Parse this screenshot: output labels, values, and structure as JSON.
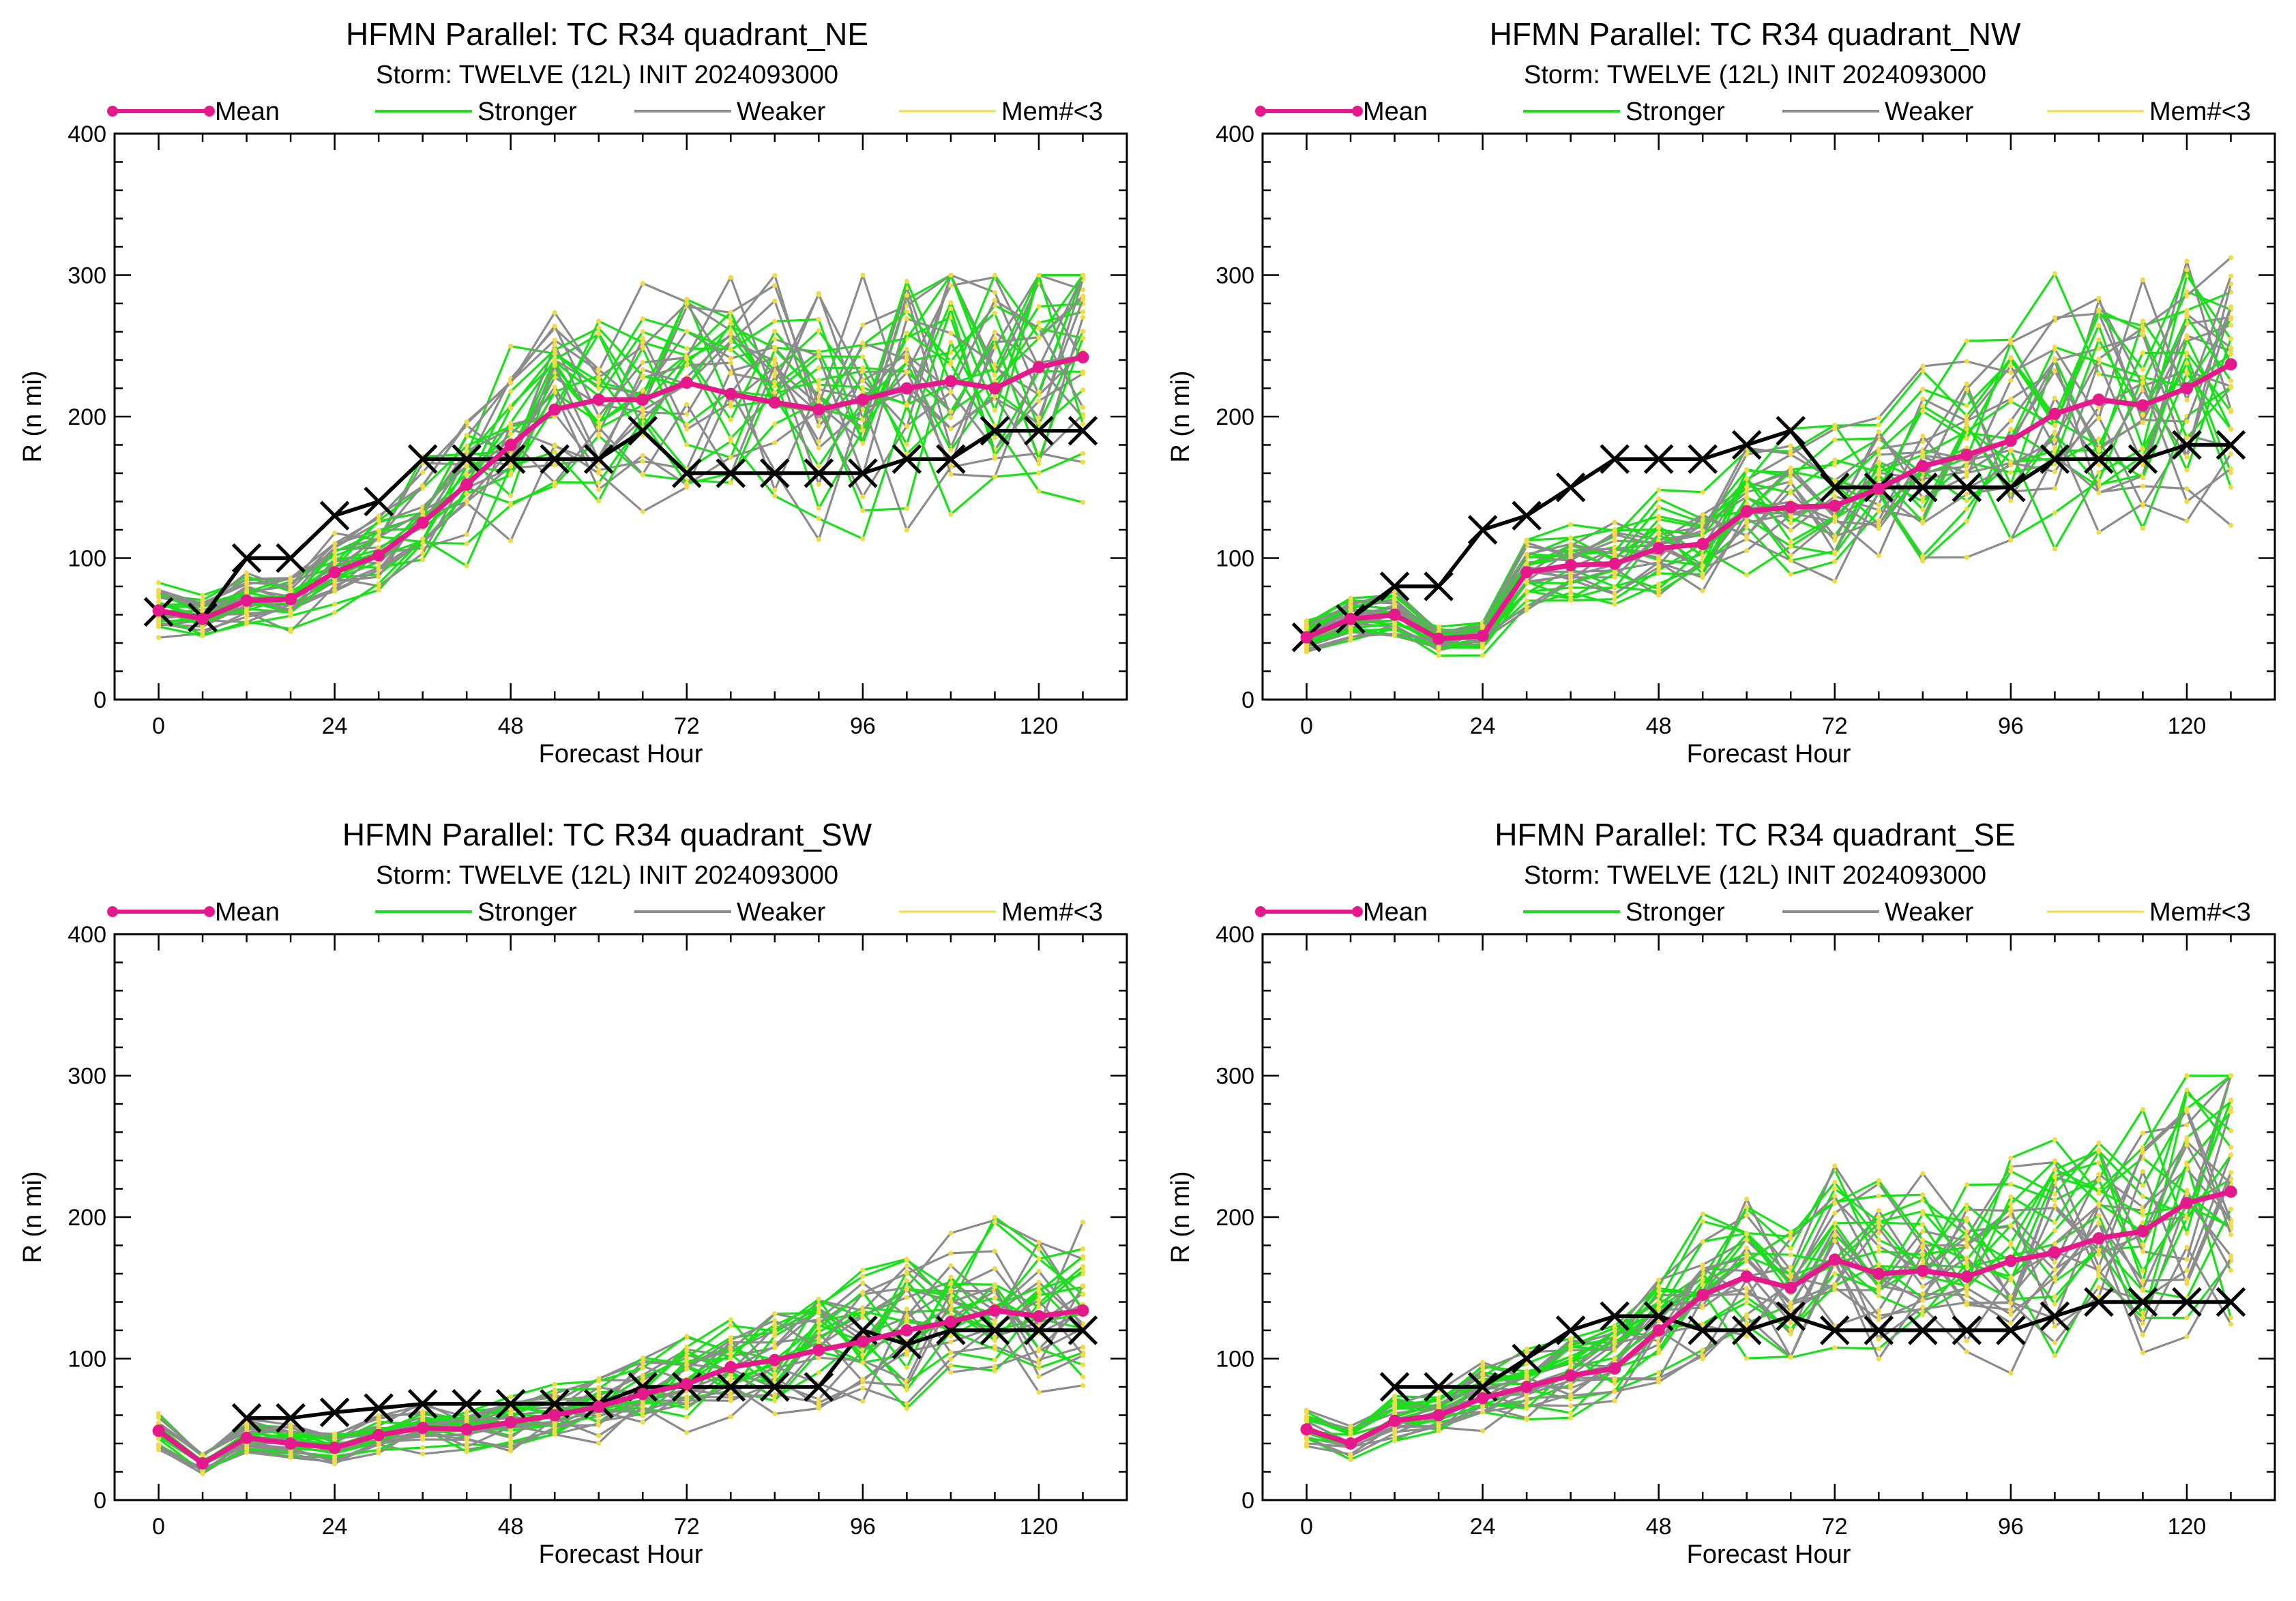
{
  "legend_labels": {
    "mean": "Mean",
    "stronger": "Stronger",
    "weaker": "Weaker",
    "members": "Mem#<3"
  },
  "colors": {
    "mean": "#e6198c",
    "stronger": "#19e019",
    "weaker": "#8c8c8c",
    "members": "#f0dc46",
    "best_track": "#000000"
  },
  "chart_data": [
    {
      "type": "line",
      "title": "HFMN Parallel: TC  R34 quadrant_NE",
      "subtitle": "Storm: TWELVE (12L) INIT 2024093000",
      "xlabel": "Forecast Hour",
      "ylabel": "R (n mi)",
      "xlim": [
        -6,
        132
      ],
      "ylim": [
        0,
        400
      ],
      "xticks": [
        0,
        24,
        48,
        72,
        96,
        120
      ],
      "yticks": [
        0,
        100,
        200,
        300,
        400
      ],
      "grid": false,
      "legend_position": "top",
      "x": [
        0,
        6,
        12,
        18,
        24,
        30,
        36,
        42,
        48,
        54,
        60,
        66,
        72,
        78,
        84,
        90,
        96,
        102,
        108,
        114,
        120,
        126
      ],
      "series": [
        {
          "name": "Mean",
          "values": [
            63,
            57,
            70,
            71,
            90,
            102,
            125,
            152,
            180,
            205,
            212,
            212,
            224,
            216,
            210,
            205,
            212,
            220,
            225,
            220,
            235,
            242
          ]
        },
        {
          "name": "",
          "values": [
            62,
            58,
            100,
            100,
            130,
            140,
            170,
            170,
            170,
            170,
            170,
            190,
            160,
            160,
            160,
            160,
            160,
            170,
            170,
            190,
            190,
            190
          ]
        }
      ],
      "ensemble_members": {
        "count": 30,
        "value_range": [
          30,
          300
        ]
      }
    },
    {
      "type": "line",
      "title": "HFMN Parallel: TC  R34 quadrant_NW",
      "subtitle": "Storm: TWELVE (12L) INIT 2024093000",
      "xlabel": "Forecast Hour",
      "ylabel": "R (n mi)",
      "xlim": [
        -6,
        132
      ],
      "ylim": [
        0,
        400
      ],
      "xticks": [
        0,
        24,
        48,
        72,
        96,
        120
      ],
      "yticks": [
        0,
        100,
        200,
        300,
        400
      ],
      "grid": false,
      "legend_position": "top",
      "x": [
        0,
        6,
        12,
        18,
        24,
        30,
        36,
        42,
        48,
        54,
        60,
        66,
        72,
        78,
        84,
        90,
        96,
        102,
        108,
        114,
        120,
        126
      ],
      "series": [
        {
          "name": "Mean",
          "values": [
            44,
            57,
            60,
            43,
            45,
            90,
            95,
            96,
            107,
            110,
            133,
            136,
            137,
            149,
            165,
            173,
            183,
            202,
            212,
            208,
            220,
            237
          ]
        },
        {
          "name": "",
          "values": [
            44,
            57,
            80,
            80,
            120,
            130,
            150,
            170,
            170,
            170,
            180,
            190,
            150,
            150,
            150,
            150,
            150,
            170,
            170,
            170,
            180,
            180
          ]
        }
      ],
      "ensemble_members": {
        "count": 30,
        "value_range": [
          10,
          320
        ]
      }
    },
    {
      "type": "line",
      "title": "HFMN Parallel: TC  R34 quadrant_SW",
      "subtitle": "Storm: TWELVE (12L) INIT 2024093000",
      "xlabel": "Forecast Hour",
      "ylabel": "R (n mi)",
      "xlim": [
        -6,
        132
      ],
      "ylim": [
        0,
        400
      ],
      "xticks": [
        0,
        24,
        48,
        72,
        96,
        120
      ],
      "yticks": [
        0,
        100,
        200,
        300,
        400
      ],
      "grid": false,
      "legend_position": "top",
      "x": [
        0,
        6,
        12,
        18,
        24,
        30,
        36,
        42,
        48,
        54,
        60,
        66,
        72,
        78,
        84,
        90,
        96,
        102,
        108,
        114,
        120,
        126
      ],
      "series": [
        {
          "name": "Mean",
          "values": [
            49,
            26,
            44,
            40,
            37,
            46,
            51,
            50,
            55,
            60,
            66,
            75,
            82,
            94,
            99,
            106,
            112,
            120,
            126,
            134,
            130,
            134
          ]
        },
        {
          "name": "",
          "values": [
            null,
            null,
            58,
            58,
            62,
            65,
            68,
            68,
            68,
            68,
            68,
            80,
            80,
            80,
            80,
            80,
            120,
            110,
            120,
            120,
            120,
            120
          ]
        }
      ],
      "ensemble_members": {
        "count": 30,
        "value_range": [
          10,
          200
        ]
      }
    },
    {
      "type": "line",
      "title": "HFMN Parallel: TC  R34 quadrant_SE",
      "subtitle": "Storm: TWELVE (12L) INIT 2024093000",
      "xlabel": "Forecast Hour",
      "ylabel": "R (n mi)",
      "xlim": [
        -6,
        132
      ],
      "ylim": [
        0,
        400
      ],
      "xticks": [
        0,
        24,
        48,
        72,
        96,
        120
      ],
      "yticks": [
        0,
        100,
        200,
        300,
        400
      ],
      "grid": false,
      "legend_position": "top",
      "x": [
        0,
        6,
        12,
        18,
        24,
        30,
        36,
        42,
        48,
        54,
        60,
        66,
        72,
        78,
        84,
        90,
        96,
        102,
        108,
        114,
        120,
        126
      ],
      "series": [
        {
          "name": "Mean",
          "values": [
            50,
            40,
            56,
            60,
            72,
            80,
            88,
            93,
            120,
            145,
            158,
            150,
            170,
            160,
            162,
            158,
            169,
            175,
            185,
            190,
            210,
            218
          ]
        },
        {
          "name": "",
          "values": [
            null,
            null,
            80,
            80,
            80,
            100,
            120,
            130,
            130,
            120,
            120,
            130,
            120,
            120,
            120,
            120,
            120,
            130,
            140,
            140,
            140,
            140
          ]
        }
      ],
      "ensemble_members": {
        "count": 30,
        "value_range": [
          10,
          300
        ]
      }
    }
  ]
}
